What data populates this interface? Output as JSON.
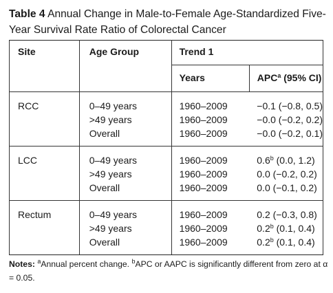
{
  "caption": {
    "label": "Table 4",
    "text": "Annual Change in Male-to-Female Age-Standardized Five-Year Survival Rate Ratio of Colorectal Cancer"
  },
  "table": {
    "headers": {
      "site": "Site",
      "age_group": "Age Group",
      "trend": "Trend 1",
      "years": "Years",
      "apc": "APC",
      "apc_sup": "a",
      "apc_suffix": " (95% CI)"
    },
    "groups": [
      {
        "site": "RCC",
        "rows": [
          {
            "age": "0–49 years",
            "years": "1960–2009",
            "apc": "−0.1",
            "sup": "",
            "ci": "(−0.8, 0.5)"
          },
          {
            "age": ">49 years",
            "years": "1960–2009",
            "apc": "−0.0",
            "sup": "",
            "ci": "(−0.2, 0.2)"
          },
          {
            "age": "Overall",
            "years": "1960–2009",
            "apc": "−0.0",
            "sup": "",
            "ci": "(−0.2, 0.1)"
          }
        ]
      },
      {
        "site": "LCC",
        "rows": [
          {
            "age": "0–49 years",
            "years": "1960–2009",
            "apc": "0.6",
            "sup": "b",
            "ci": "(0.0, 1.2)"
          },
          {
            "age": ">49 years",
            "years": "1960–2009",
            "apc": "0.0",
            "sup": "",
            "ci": "(−0.2, 0.2)"
          },
          {
            "age": "Overall",
            "years": "1960–2009",
            "apc": "0.0",
            "sup": "",
            "ci": "(−0.1, 0.2)"
          }
        ]
      },
      {
        "site": "Rectum",
        "rows": [
          {
            "age": "0–49 years",
            "years": "1960–2009",
            "apc": "0.2",
            "sup": "",
            "ci": "(−0.3, 0.8)"
          },
          {
            "age": ">49 years",
            "years": "1960–2009",
            "apc": "0.2",
            "sup": "b",
            "ci": "(0.1, 0.4)"
          },
          {
            "age": "Overall",
            "years": "1960–2009",
            "apc": "0.2",
            "sup": "b",
            "ci": "(0.1, 0.4)"
          }
        ]
      }
    ]
  },
  "notes": {
    "label": "Notes:",
    "sup_a": "a",
    "text_a": "Annual percent change. ",
    "sup_b": "b",
    "text_b": "APC or AAPC is significantly different from zero at α = 0.05."
  }
}
